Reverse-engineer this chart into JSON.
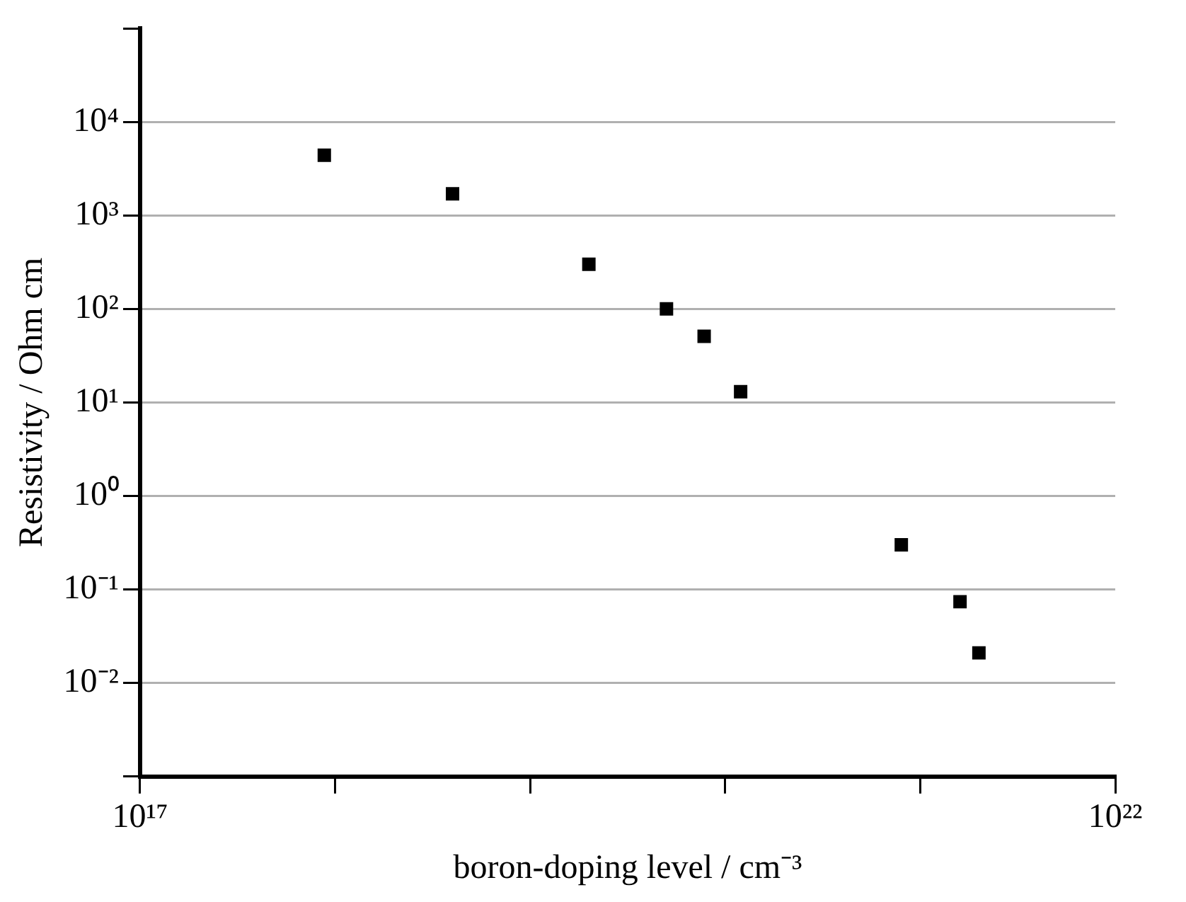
{
  "chart_data": {
    "type": "scatter",
    "xlabel": "boron-doping level / cm⁻³",
    "ylabel": "Resistivity / Ohm cm",
    "log": "xy",
    "grid": "y",
    "marker": "square",
    "xlim": [
      1e+17,
      1e+22
    ],
    "xticks": [
      {
        "value": 1e+17,
        "label": "10¹⁷"
      },
      {
        "value": 1e+18,
        "label": null
      },
      {
        "value": 1e+19,
        "label": null
      },
      {
        "value": 1e+20,
        "label": null
      },
      {
        "value": 1e+21,
        "label": null
      },
      {
        "value": 1e+22,
        "label": "10²²"
      }
    ],
    "ylim": [
      0.001,
      100000
    ],
    "yticks": [
      {
        "value": 0.001,
        "label": null
      },
      {
        "value": 0.01,
        "label": "10⁻²"
      },
      {
        "value": 0.1,
        "label": "10⁻¹"
      },
      {
        "value": 1,
        "label": "10⁰"
      },
      {
        "value": 10,
        "label": "10¹"
      },
      {
        "value": 100,
        "label": "10²"
      },
      {
        "value": 1000,
        "label": "10³"
      },
      {
        "value": 10000,
        "label": "10⁴"
      },
      {
        "value": 100000,
        "label": null
      }
    ],
    "series": [
      {
        "color": "#000000",
        "x": [
          8.8e+17,
          4e+18,
          2e+19,
          5e+19,
          7.8e+19,
          1.2e+20,
          8e+20,
          1.6e+21,
          2e+21
        ],
        "values": [
          4400,
          1700,
          300,
          100,
          51,
          13,
          0.3,
          0.074,
          0.021
        ]
      }
    ]
  }
}
